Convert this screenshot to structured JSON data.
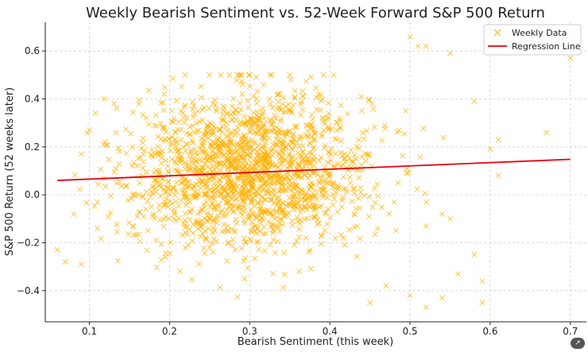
{
  "chart_data": {
    "type": "scatter",
    "title": "Weekly Bearish Sentiment vs. 52-Week Forward S&P 500 Return",
    "xlabel": "Bearish Sentiment (this week)",
    "ylabel": "S&P 500 Return (52 weeks later)",
    "xlim": [
      0.045,
      0.72
    ],
    "ylim": [
      -0.53,
      0.72
    ],
    "xticks": [
      0.1,
      0.2,
      0.3,
      0.4,
      0.5,
      0.6,
      0.7
    ],
    "yticks": [
      -0.4,
      -0.2,
      0.0,
      0.2,
      0.4,
      0.6
    ],
    "xtick_labels": [
      "0.1",
      "0.2",
      "0.3",
      "0.4",
      "0.5",
      "0.6",
      "0.7"
    ],
    "ytick_labels": [
      "−0.4",
      "−0.2",
      "0.0",
      "0.2",
      "0.4",
      "0.6"
    ],
    "grid": true,
    "legend_position": "top-right",
    "series": [
      {
        "name": "Weekly Data",
        "marker": "x",
        "color": "#FFB000",
        "alpha": 0.6,
        "count": 1800,
        "x_center": 0.3,
        "x_spread": 0.075,
        "y_center": 0.1,
        "y_spread": 0.16,
        "outliers": [
          {
            "x": 0.06,
            "y": -0.23
          },
          {
            "x": 0.07,
            "y": -0.28
          },
          {
            "x": 0.09,
            "y": -0.29
          },
          {
            "x": 0.09,
            "y": 0.17
          },
          {
            "x": 0.1,
            "y": 0.27
          },
          {
            "x": 0.5,
            "y": 0.66
          },
          {
            "x": 0.51,
            "y": 0.62
          },
          {
            "x": 0.52,
            "y": 0.62
          },
          {
            "x": 0.55,
            "y": 0.59
          },
          {
            "x": 0.58,
            "y": 0.39
          },
          {
            "x": 0.6,
            "y": 0.19
          },
          {
            "x": 0.61,
            "y": 0.23
          },
          {
            "x": 0.61,
            "y": 0.08
          },
          {
            "x": 0.67,
            "y": 0.26
          },
          {
            "x": 0.7,
            "y": 0.57
          },
          {
            "x": 0.59,
            "y": -0.36
          },
          {
            "x": 0.59,
            "y": -0.45
          },
          {
            "x": 0.52,
            "y": -0.47
          },
          {
            "x": 0.5,
            "y": -0.42
          },
          {
            "x": 0.45,
            "y": -0.45
          },
          {
            "x": 0.54,
            "y": -0.43
          },
          {
            "x": 0.58,
            "y": -0.25
          },
          {
            "x": 0.54,
            "y": -0.08
          },
          {
            "x": 0.55,
            "y": -0.1
          },
          {
            "x": 0.52,
            "y": -0.13
          },
          {
            "x": 0.56,
            "y": -0.33
          },
          {
            "x": 0.47,
            "y": -0.38
          },
          {
            "x": 0.11,
            "y": -0.14
          },
          {
            "x": 0.11,
            "y": -0.03
          },
          {
            "x": 0.12,
            "y": 0.22
          }
        ]
      },
      {
        "name": "Regression Line",
        "type": "line",
        "color": "#E8000B",
        "x": [
          0.06,
          0.7
        ],
        "y": [
          0.06,
          0.148
        ]
      }
    ]
  },
  "ui": {
    "badge_label": "↗"
  }
}
